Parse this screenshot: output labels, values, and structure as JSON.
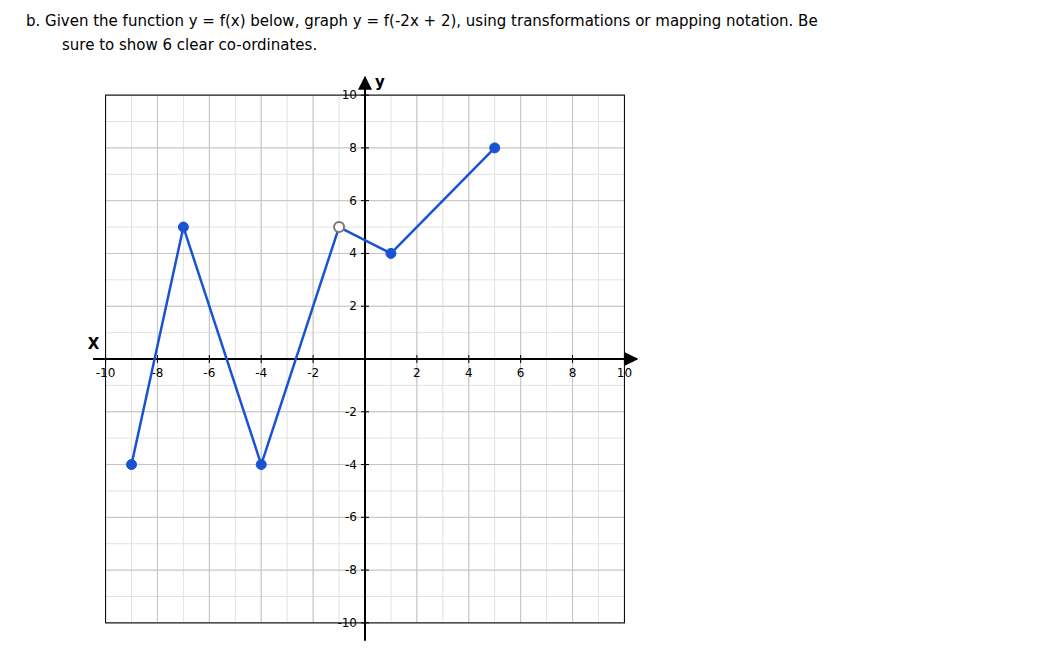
{
  "chart_data": {
    "type": "line",
    "title": "b.   Given the function y = f(x) below, graph  y = f(-2x + 2), using transformations or mapping notation. Be",
    "subtitle": "sure to show 6 clear co-ordinates.",
    "x_label": "X",
    "y_label": "y",
    "x": [
      -9,
      -7,
      -4,
      -1,
      1,
      5
    ],
    "series": [
      {
        "type": "line",
        "marker": "none",
        "color": "#1a52d4",
        "values": [
          -4,
          5,
          -4,
          5,
          4,
          8
        ]
      },
      {
        "type": "scatter",
        "marker": "circle",
        "color": "#1a52d4",
        "values": [
          -4,
          5,
          -4,
          null,
          4,
          8
        ]
      },
      {
        "type": "scatter",
        "marker": "open_circle",
        "color": "#777777",
        "values": [
          null,
          null,
          null,
          5,
          null,
          null
        ]
      }
    ],
    "xlim": [
      -10,
      10
    ],
    "ylim": [
      -10,
      10
    ],
    "xticks": [
      -10,
      -8,
      -6,
      -4,
      -2,
      2,
      4,
      6,
      8,
      10
    ],
    "yticks": [
      -10,
      -8,
      -6,
      -4,
      -2,
      2,
      4,
      6,
      8,
      10
    ],
    "grid": true
  }
}
